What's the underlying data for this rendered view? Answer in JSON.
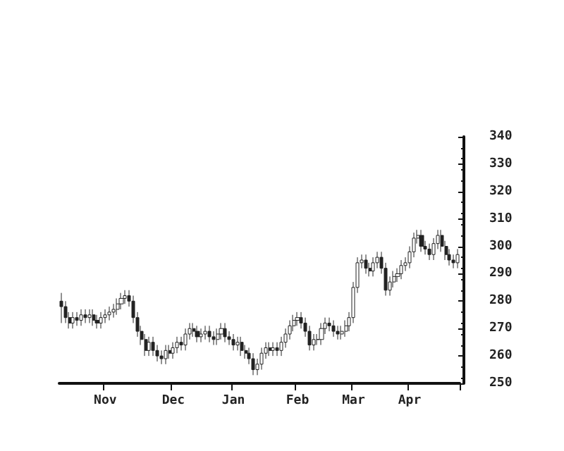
{
  "chart_data": {
    "type": "candlestick",
    "categories": [
      null,
      null,
      null,
      null,
      null,
      null,
      null,
      null,
      null,
      null,
      null,
      "Nov",
      null,
      null,
      null,
      null,
      null,
      null,
      null,
      null,
      null,
      null,
      null,
      null,
      null,
      null,
      null,
      null,
      "Dec",
      null,
      null,
      null,
      null,
      null,
      null,
      null,
      null,
      null,
      null,
      null,
      null,
      null,
      null,
      "Jan",
      null,
      null,
      null,
      null,
      null,
      null,
      null,
      null,
      null,
      null,
      null,
      null,
      null,
      null,
      null,
      "Feb",
      null,
      null,
      null,
      null,
      null,
      null,
      null,
      null,
      null,
      null,
      null,
      null,
      null,
      "Mar",
      null,
      null,
      null,
      null,
      null,
      null,
      null,
      null,
      null,
      null,
      null,
      null,
      null,
      "Apr",
      null,
      null,
      null,
      null,
      null,
      null,
      null,
      null,
      null,
      null,
      null,
      null
    ],
    "ohlc": [
      [
        280,
        283,
        272,
        278
      ],
      [
        278,
        280,
        272,
        274
      ],
      [
        274,
        276,
        270,
        272
      ],
      [
        272,
        276,
        270,
        274
      ],
      [
        274,
        276,
        271,
        273
      ],
      [
        273,
        277,
        271,
        275
      ],
      [
        275,
        277,
        272,
        274
      ],
      [
        274,
        277,
        272,
        275
      ],
      [
        275,
        277,
        271,
        273
      ],
      [
        273,
        275,
        270,
        272
      ],
      [
        272,
        276,
        270,
        274
      ],
      [
        274,
        277,
        272,
        275
      ],
      [
        275,
        278,
        273,
        276
      ],
      [
        276,
        279,
        274,
        277
      ],
      [
        277,
        281,
        275,
        279
      ],
      [
        279,
        283,
        277,
        281
      ],
      [
        281,
        284,
        279,
        282
      ],
      [
        282,
        284,
        278,
        280
      ],
      [
        280,
        282,
        272,
        274
      ],
      [
        274,
        276,
        267,
        269
      ],
      [
        269,
        271,
        264,
        266
      ],
      [
        266,
        268,
        260,
        262
      ],
      [
        262,
        267,
        260,
        265
      ],
      [
        265,
        267,
        260,
        262
      ],
      [
        262,
        264,
        258,
        260
      ],
      [
        260,
        262,
        257,
        259
      ],
      [
        259,
        264,
        257,
        262
      ],
      [
        262,
        264,
        259,
        261
      ],
      [
        261,
        265,
        259,
        263
      ],
      [
        263,
        267,
        261,
        265
      ],
      [
        265,
        267,
        262,
        264
      ],
      [
        264,
        270,
        262,
        268
      ],
      [
        268,
        272,
        266,
        270
      ],
      [
        270,
        272,
        267,
        269
      ],
      [
        269,
        271,
        265,
        267
      ],
      [
        267,
        270,
        265,
        268
      ],
      [
        268,
        271,
        266,
        269
      ],
      [
        269,
        271,
        265,
        267
      ],
      [
        267,
        269,
        264,
        266
      ],
      [
        266,
        270,
        264,
        268
      ],
      [
        268,
        272,
        266,
        270
      ],
      [
        270,
        272,
        265,
        267
      ],
      [
        267,
        269,
        264,
        266
      ],
      [
        266,
        268,
        262,
        264
      ],
      [
        264,
        267,
        262,
        265
      ],
      [
        265,
        267,
        260,
        262
      ],
      [
        262,
        264,
        259,
        261
      ],
      [
        261,
        263,
        257,
        259
      ],
      [
        259,
        261,
        253,
        255
      ],
      [
        255,
        259,
        253,
        257
      ],
      [
        257,
        263,
        255,
        261
      ],
      [
        261,
        265,
        259,
        263
      ],
      [
        263,
        265,
        260,
        262
      ],
      [
        262,
        265,
        260,
        263
      ],
      [
        263,
        265,
        260,
        262
      ],
      [
        262,
        267,
        260,
        265
      ],
      [
        265,
        270,
        263,
        268
      ],
      [
        268,
        273,
        266,
        271
      ],
      [
        271,
        275,
        269,
        273
      ],
      [
        273,
        276,
        271,
        274
      ],
      [
        274,
        276,
        270,
        272
      ],
      [
        272,
        274,
        267,
        269
      ],
      [
        269,
        271,
        262,
        264
      ],
      [
        264,
        268,
        262,
        266
      ],
      [
        266,
        268,
        264,
        266
      ],
      [
        266,
        272,
        264,
        270
      ],
      [
        270,
        274,
        268,
        272
      ],
      [
        272,
        274,
        269,
        271
      ],
      [
        271,
        273,
        267,
        269
      ],
      [
        269,
        271,
        266,
        268
      ],
      [
        268,
        271,
        266,
        269
      ],
      [
        269,
        273,
        267,
        271
      ],
      [
        271,
        276,
        269,
        274
      ],
      [
        274,
        287,
        272,
        285
      ],
      [
        285,
        296,
        283,
        294
      ],
      [
        294,
        297,
        292,
        295
      ],
      [
        295,
        297,
        290,
        292
      ],
      [
        292,
        294,
        289,
        291
      ],
      [
        291,
        296,
        289,
        294
      ],
      [
        294,
        298,
        292,
        296
      ],
      [
        296,
        298,
        290,
        292
      ],
      [
        292,
        294,
        282,
        284
      ],
      [
        284,
        289,
        282,
        287
      ],
      [
        287,
        291,
        285,
        289
      ],
      [
        289,
        292,
        287,
        290
      ],
      [
        290,
        295,
        288,
        293
      ],
      [
        293,
        296,
        291,
        294
      ],
      [
        294,
        300,
        292,
        298
      ],
      [
        298,
        305,
        296,
        303
      ],
      [
        303,
        306,
        301,
        304
      ],
      [
        304,
        306,
        298,
        300
      ],
      [
        300,
        302,
        297,
        299
      ],
      [
        299,
        301,
        295,
        297
      ],
      [
        297,
        303,
        295,
        301
      ],
      [
        301,
        306,
        299,
        304
      ],
      [
        304,
        306,
        298,
        300
      ],
      [
        300,
        302,
        295,
        297
      ],
      [
        297,
        299,
        293,
        295
      ],
      [
        295,
        297,
        292,
        294
      ],
      [
        294,
        299,
        292,
        297
      ]
    ],
    "color": "#222222",
    "ylim": [
      250,
      340
    ],
    "yticks": [
      250,
      260,
      270,
      280,
      290,
      300,
      310,
      320,
      330,
      340
    ],
    "grid": false
  }
}
